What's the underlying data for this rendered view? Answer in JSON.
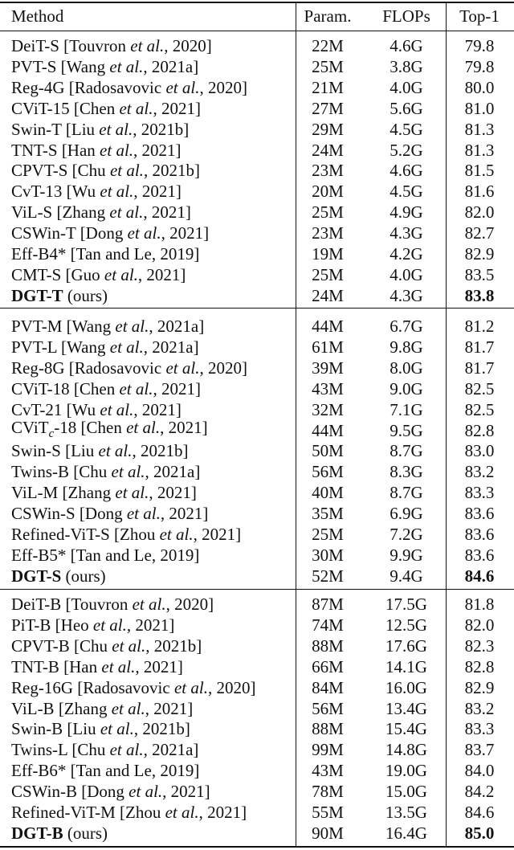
{
  "table": {
    "header": {
      "method": "Method",
      "params": "Param.",
      "flops": "FLOPs",
      "top1": "Top-1"
    },
    "groups": [
      [
        {
          "method": [
            {
              "t": "DeiT-S [Touvron "
            },
            {
              "t": "et al.",
              "s": "italic"
            },
            {
              "t": ", 2020]"
            }
          ],
          "params": "22M",
          "flops": "4.6G",
          "top1": "79.8"
        },
        {
          "method": [
            {
              "t": "PVT-S [Wang "
            },
            {
              "t": "et al.",
              "s": "italic"
            },
            {
              "t": ", 2021a]"
            }
          ],
          "params": "25M",
          "flops": "3.8G",
          "top1": "79.8"
        },
        {
          "method": [
            {
              "t": "Reg-4G [Radosavovic "
            },
            {
              "t": "et al.",
              "s": "italic"
            },
            {
              "t": ", 2020]"
            }
          ],
          "params": "21M",
          "flops": "4.0G",
          "top1": "80.0"
        },
        {
          "method": [
            {
              "t": "CViT-15 [Chen "
            },
            {
              "t": "et al.",
              "s": "italic"
            },
            {
              "t": ", 2021]"
            }
          ],
          "params": "27M",
          "flops": "5.6G",
          "top1": "81.0"
        },
        {
          "method": [
            {
              "t": "Swin-T [Liu "
            },
            {
              "t": "et al.",
              "s": "italic"
            },
            {
              "t": ", 2021b]"
            }
          ],
          "params": "29M",
          "flops": "4.5G",
          "top1": "81.3"
        },
        {
          "method": [
            {
              "t": "TNT-S [Han "
            },
            {
              "t": "et al.",
              "s": "italic"
            },
            {
              "t": ", 2021]"
            }
          ],
          "params": "24M",
          "flops": "5.2G",
          "top1": "81.3"
        },
        {
          "method": [
            {
              "t": "CPVT-S [Chu "
            },
            {
              "t": "et al.",
              "s": "italic"
            },
            {
              "t": ", 2021b]"
            }
          ],
          "params": "23M",
          "flops": "4.6G",
          "top1": "81.5"
        },
        {
          "method": [
            {
              "t": "CvT-13 [Wu "
            },
            {
              "t": "et al.",
              "s": "italic"
            },
            {
              "t": ", 2021]"
            }
          ],
          "params": "20M",
          "flops": "4.5G",
          "top1": "81.6"
        },
        {
          "method": [
            {
              "t": "ViL-S [Zhang "
            },
            {
              "t": "et al.",
              "s": "italic"
            },
            {
              "t": ", 2021]"
            }
          ],
          "params": "25M",
          "flops": "4.9G",
          "top1": "82.0"
        },
        {
          "method": [
            {
              "t": "CSWin-T [Dong "
            },
            {
              "t": "et al.",
              "s": "italic"
            },
            {
              "t": ", 2021]"
            }
          ],
          "params": "23M",
          "flops": "4.3G",
          "top1": "82.7"
        },
        {
          "method": [
            {
              "t": "Eff-B4* [Tan and Le, 2019]"
            }
          ],
          "params": "19M",
          "flops": "4.2G",
          "top1": "82.9"
        },
        {
          "method": [
            {
              "t": "CMT-S [Guo "
            },
            {
              "t": "et al.",
              "s": "italic"
            },
            {
              "t": ", 2021]"
            }
          ],
          "params": "25M",
          "flops": "4.0G",
          "top1": "83.5"
        },
        {
          "method": [
            {
              "t": "DGT-T",
              "s": "bold"
            },
            {
              "t": " (ours)"
            }
          ],
          "params": "24M",
          "flops": "4.3G",
          "top1": "83.8",
          "top1_style": "bold"
        }
      ],
      [
        {
          "method": [
            {
              "t": "PVT-M [Wang "
            },
            {
              "t": "et al.",
              "s": "italic"
            },
            {
              "t": ", 2021a]"
            }
          ],
          "params": "44M",
          "flops": "6.7G",
          "top1": "81.2"
        },
        {
          "method": [
            {
              "t": "PVT-L [Wang "
            },
            {
              "t": "et al.",
              "s": "italic"
            },
            {
              "t": ", 2021a]"
            }
          ],
          "params": "61M",
          "flops": "9.8G",
          "top1": "81.7"
        },
        {
          "method": [
            {
              "t": "Reg-8G [Radosavovic "
            },
            {
              "t": "et al.",
              "s": "italic"
            },
            {
              "t": ", 2020]"
            }
          ],
          "params": "39M",
          "flops": "8.0G",
          "top1": "81.7"
        },
        {
          "method": [
            {
              "t": "CViT-18 [Chen "
            },
            {
              "t": "et al.",
              "s": "italic"
            },
            {
              "t": ", 2021]"
            }
          ],
          "params": "43M",
          "flops": "9.0G",
          "top1": "82.5"
        },
        {
          "method": [
            {
              "t": "CvT-21 [Wu "
            },
            {
              "t": "et al.",
              "s": "italic"
            },
            {
              "t": ", 2021]"
            }
          ],
          "params": "32M",
          "flops": "7.1G",
          "top1": "82.5"
        },
        {
          "method": [
            {
              "t": "CViT"
            },
            {
              "t": "c",
              "s": "sub-italic"
            },
            {
              "t": "-18 [Chen "
            },
            {
              "t": "et al.",
              "s": "italic"
            },
            {
              "t": ", 2021]"
            }
          ],
          "params": "44M",
          "flops": "9.5G",
          "top1": "82.8"
        },
        {
          "method": [
            {
              "t": "Swin-S [Liu "
            },
            {
              "t": "et al.",
              "s": "italic"
            },
            {
              "t": ", 2021b]"
            }
          ],
          "params": "50M",
          "flops": "8.7G",
          "top1": "83.0"
        },
        {
          "method": [
            {
              "t": "Twins-B [Chu "
            },
            {
              "t": "et al.",
              "s": "italic"
            },
            {
              "t": ", 2021a]"
            }
          ],
          "params": "56M",
          "flops": "8.3G",
          "top1": "83.2"
        },
        {
          "method": [
            {
              "t": "ViL-M [Zhang "
            },
            {
              "t": "et al.",
              "s": "italic"
            },
            {
              "t": ", 2021]"
            }
          ],
          "params": "40M",
          "flops": "8.7G",
          "top1": "83.3"
        },
        {
          "method": [
            {
              "t": "CSWin-S [Dong "
            },
            {
              "t": "et al.",
              "s": "italic"
            },
            {
              "t": ", 2021]"
            }
          ],
          "params": "35M",
          "flops": "6.9G",
          "top1": "83.6"
        },
        {
          "method": [
            {
              "t": "Refined-ViT-S [Zhou "
            },
            {
              "t": "et al.",
              "s": "italic"
            },
            {
              "t": ", 2021]"
            }
          ],
          "params": "25M",
          "flops": "7.2G",
          "top1": "83.6"
        },
        {
          "method": [
            {
              "t": "Eff-B5* [Tan and Le, 2019]"
            }
          ],
          "params": "30M",
          "flops": "9.9G",
          "top1": "83.6"
        },
        {
          "method": [
            {
              "t": "DGT-S",
              "s": "bold"
            },
            {
              "t": " (ours)"
            }
          ],
          "params": "52M",
          "flops": "9.4G",
          "top1": "84.6",
          "top1_style": "bold"
        }
      ],
      [
        {
          "method": [
            {
              "t": "DeiT-B [Touvron "
            },
            {
              "t": "et al.",
              "s": "italic"
            },
            {
              "t": ", 2020]"
            }
          ],
          "params": "87M",
          "flops": "17.5G",
          "top1": "81.8"
        },
        {
          "method": [
            {
              "t": "PiT-B [Heo "
            },
            {
              "t": "et al.",
              "s": "italic"
            },
            {
              "t": ", 2021]"
            }
          ],
          "params": "74M",
          "flops": "12.5G",
          "top1": "82.0"
        },
        {
          "method": [
            {
              "t": "CPVT-B [Chu "
            },
            {
              "t": "et al.",
              "s": "italic"
            },
            {
              "t": ", 2021b]"
            }
          ],
          "params": "88M",
          "flops": "17.6G",
          "top1": "82.3"
        },
        {
          "method": [
            {
              "t": "TNT-B [Han "
            },
            {
              "t": "et al.",
              "s": "italic"
            },
            {
              "t": ", 2021]"
            }
          ],
          "params": "66M",
          "flops": "14.1G",
          "top1": "82.8"
        },
        {
          "method": [
            {
              "t": "Reg-16G [Radosavovic "
            },
            {
              "t": "et al.",
              "s": "italic"
            },
            {
              "t": ", 2020]"
            }
          ],
          "params": "84M",
          "flops": "16.0G",
          "top1": "82.9"
        },
        {
          "method": [
            {
              "t": "ViL-B [Zhang "
            },
            {
              "t": "et al.",
              "s": "italic"
            },
            {
              "t": ", 2021]"
            }
          ],
          "params": "56M",
          "flops": "13.4G",
          "top1": "83.2"
        },
        {
          "method": [
            {
              "t": "Swin-B [Liu "
            },
            {
              "t": "et al.",
              "s": "italic"
            },
            {
              "t": ", 2021b]"
            }
          ],
          "params": "88M",
          "flops": "15.4G",
          "top1": "83.3"
        },
        {
          "method": [
            {
              "t": "Twins-L [Chu "
            },
            {
              "t": "et al.",
              "s": "italic"
            },
            {
              "t": ", 2021a]"
            }
          ],
          "params": "99M",
          "flops": "14.8G",
          "top1": "83.7"
        },
        {
          "method": [
            {
              "t": "Eff-B6* [Tan and Le, 2019]"
            }
          ],
          "params": "43M",
          "flops": "19.0G",
          "top1": "84.0"
        },
        {
          "method": [
            {
              "t": "CSWin-B [Dong "
            },
            {
              "t": "et al.",
              "s": "italic"
            },
            {
              "t": ", 2021]"
            }
          ],
          "params": "78M",
          "flops": "15.0G",
          "top1": "84.2"
        },
        {
          "method": [
            {
              "t": "Refined-ViT-M [Zhou "
            },
            {
              "t": "et al.",
              "s": "italic"
            },
            {
              "t": ", 2021]"
            }
          ],
          "params": "55M",
          "flops": "13.5G",
          "top1": "84.6"
        },
        {
          "method": [
            {
              "t": "DGT-B",
              "s": "bold"
            },
            {
              "t": " (ours)"
            }
          ],
          "params": "90M",
          "flops": "16.4G",
          "top1": "85.0",
          "top1_style": "bold"
        }
      ]
    ]
  }
}
